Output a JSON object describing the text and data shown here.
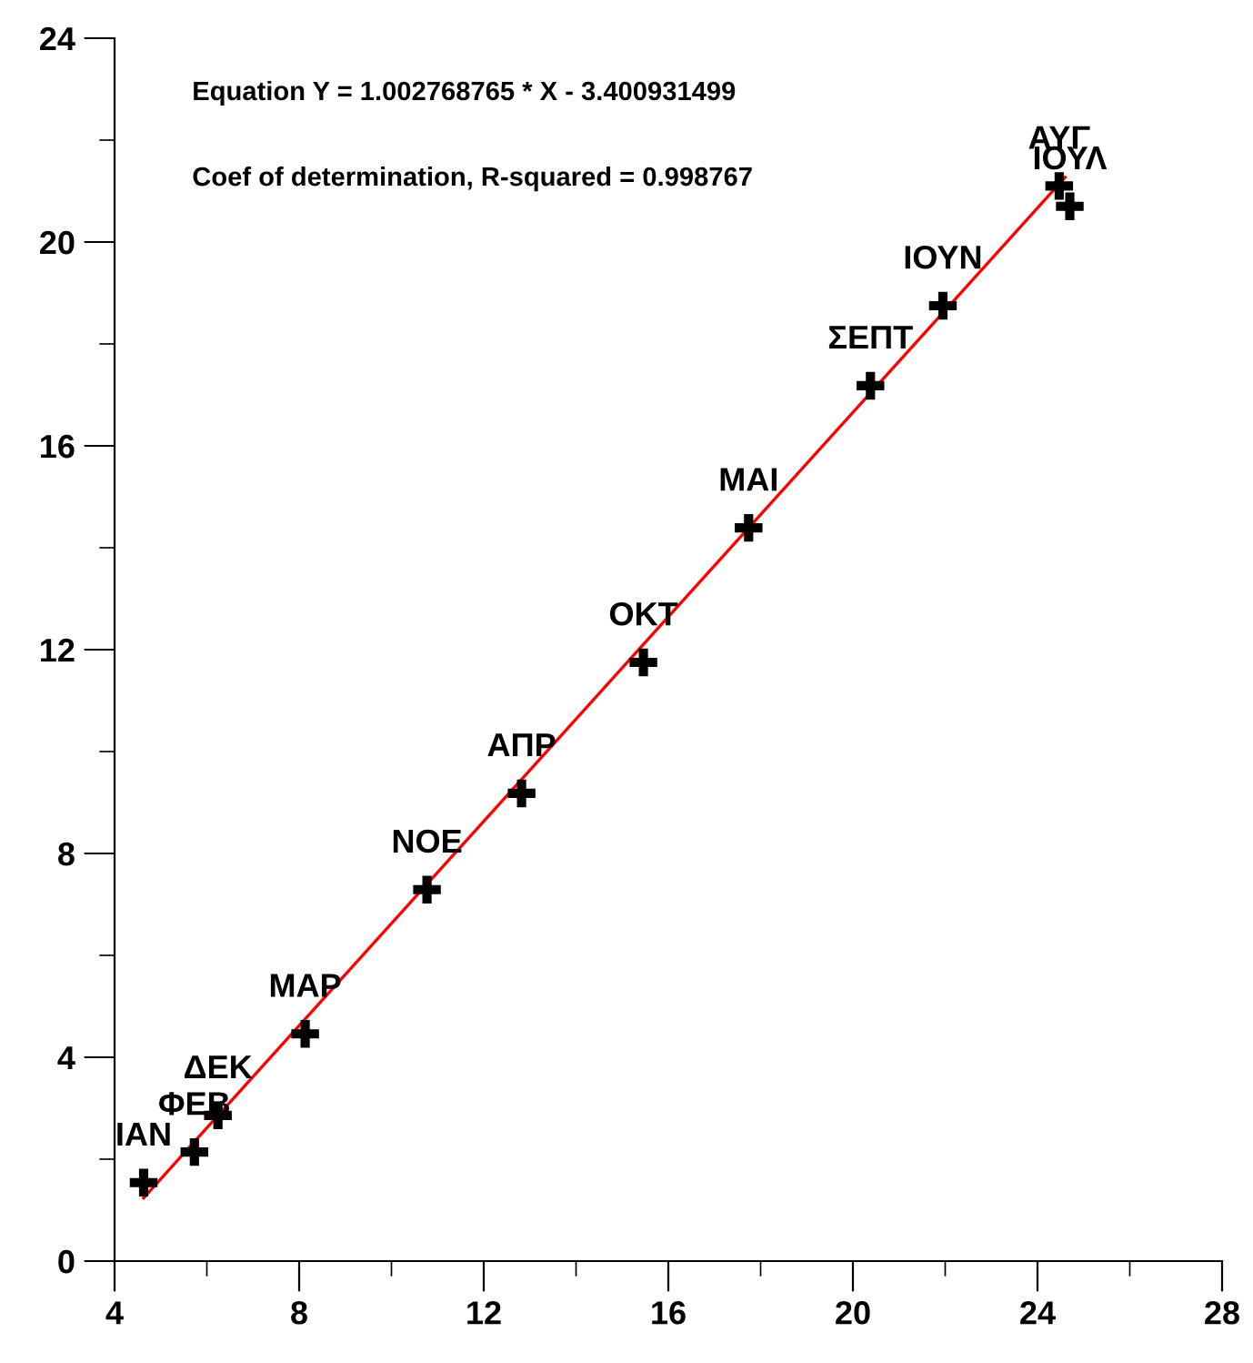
{
  "chart_data": {
    "type": "scatter",
    "annotations": [
      "Equation Y = 1.002768765 * X - 3.400931499",
      "Coef of determination, R-squared = 0.998767",
      {
        "text": "ΙΑΝ",
        "x": 4.63,
        "y": 1.54
      },
      {
        "text": "ΦΕΒ",
        "x": 5.73,
        "y": 2.14
      },
      {
        "text": "ΔΕΚ",
        "x": 6.24,
        "y": 2.86
      },
      {
        "text": "ΜΑΡ",
        "x": 8.13,
        "y": 4.46
      },
      {
        "text": "ΝΟΕ",
        "x": 10.77,
        "y": 7.29
      },
      {
        "text": "ΑΠΡ",
        "x": 12.82,
        "y": 9.18
      },
      {
        "text": "ΟΚΤ",
        "x": 15.46,
        "y": 11.75
      },
      {
        "text": "ΜΑΙ",
        "x": 17.74,
        "y": 14.39
      },
      {
        "text": "ΣΕΠΤ",
        "x": 20.38,
        "y": 17.18
      },
      {
        "text": "ΙΟΥΝ",
        "x": 21.95,
        "y": 18.75
      },
      {
        "text": "ΑΥΓ",
        "x": 24.47,
        "y": 21.1
      },
      {
        "text": "ΙΟΥΛ",
        "x": 24.7,
        "y": 20.7
      }
    ],
    "series": [
      {
        "type": "scatter",
        "color": "#000000",
        "marker": "cross",
        "x": [
          4.63,
          5.73,
          6.24,
          8.13,
          10.77,
          12.82,
          15.46,
          17.74,
          20.38,
          21.95,
          24.47,
          24.7
        ],
        "values": [
          1.54,
          2.14,
          2.86,
          4.46,
          7.29,
          9.18,
          11.75,
          14.39,
          17.18,
          18.75,
          21.1,
          20.7
        ]
      },
      {
        "type": "line",
        "color": "#ff0000",
        "x": [
          4.63,
          24.6
        ],
        "values": [
          1.24,
          21.27
        ]
      }
    ],
    "xlim": [
      4,
      28
    ],
    "ylim": [
      0,
      24
    ],
    "xticks": [
      4,
      8,
      12,
      16,
      20,
      24,
      28
    ],
    "yticks": [
      0,
      4,
      8,
      12,
      16,
      20,
      24
    ],
    "grid": false,
    "legend": false
  }
}
